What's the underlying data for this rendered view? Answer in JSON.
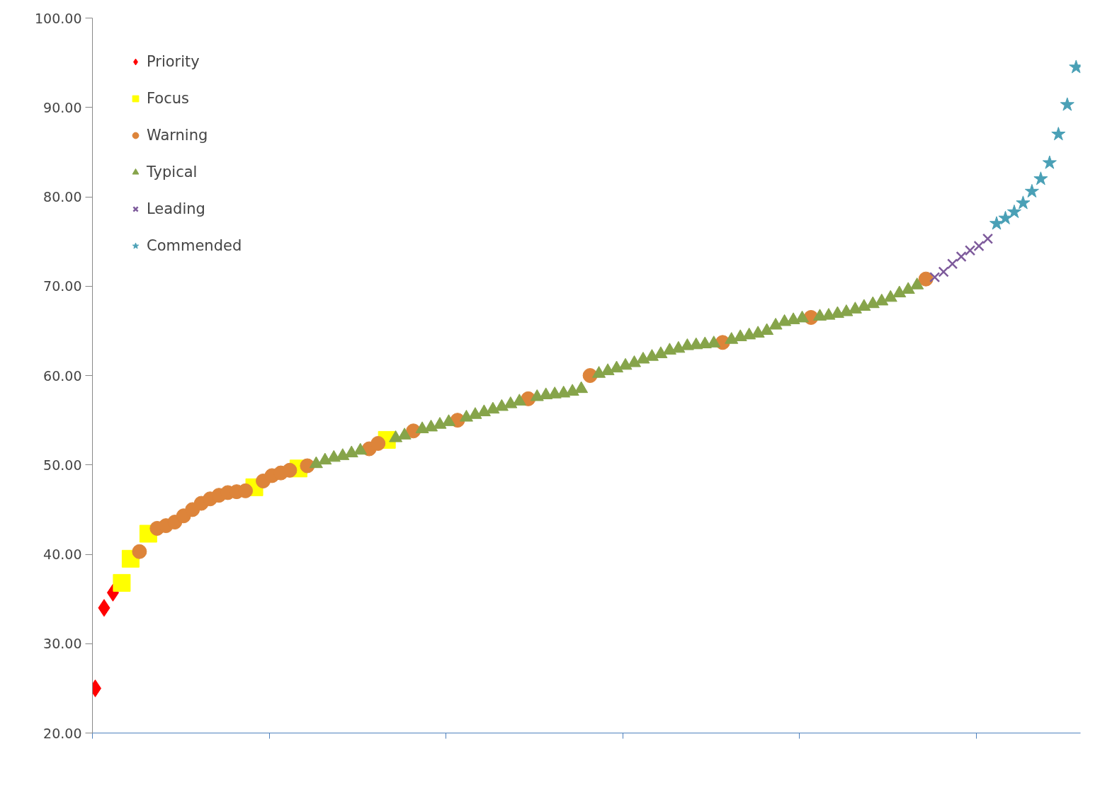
{
  "chart_data": {
    "type": "scatter",
    "categories": [
      null,
      null,
      null,
      null,
      null,
      null,
      null,
      null,
      null,
      null,
      null,
      null,
      null,
      null,
      null,
      null,
      null,
      null,
      null,
      null,
      null,
      null,
      null,
      null,
      null,
      null,
      null,
      null,
      null,
      null,
      null,
      null,
      null,
      null,
      null,
      null,
      null,
      null,
      null,
      null,
      null,
      null,
      null,
      null,
      null,
      null,
      null,
      null,
      null,
      null,
      null,
      null,
      null,
      null,
      null,
      null,
      null,
      null,
      null,
      null,
      null,
      null,
      null,
      null,
      null,
      null,
      null,
      null,
      null,
      null,
      null,
      null,
      null,
      null,
      null,
      null,
      null,
      null,
      null,
      null,
      null,
      null,
      null,
      null,
      null,
      null,
      null,
      null,
      null,
      null,
      null,
      null,
      null,
      null,
      null,
      null,
      null,
      null,
      null,
      null,
      null,
      null,
      null,
      null,
      null,
      null,
      null,
      null,
      null,
      null,
      null,
      null
    ],
    "series": [
      {
        "name": "Priority",
        "color": "#ff0000",
        "marker": "diamond",
        "values": [
          25,
          34,
          35.7,
          null,
          null,
          null,
          null,
          null,
          null,
          null,
          null,
          null,
          null,
          null,
          null,
          null,
          null,
          null,
          null,
          null,
          null,
          null,
          null,
          null,
          null,
          null,
          null,
          null,
          null,
          null,
          null,
          null,
          null,
          null,
          null,
          null,
          null,
          null,
          null,
          null,
          null,
          null,
          null,
          null,
          null,
          null,
          null,
          null,
          null,
          null,
          null,
          null,
          null,
          null,
          null,
          null,
          null,
          null,
          null,
          null,
          null,
          null,
          null,
          null,
          null,
          null,
          null,
          null,
          null,
          null,
          null,
          null,
          null,
          null,
          null,
          null,
          null,
          null,
          null,
          null,
          null,
          null,
          null,
          null,
          null,
          null,
          null,
          null,
          null,
          null,
          null,
          null,
          null,
          null,
          null,
          null,
          null,
          null,
          null,
          null,
          null,
          null,
          null,
          null,
          null,
          null,
          null,
          null,
          null,
          null,
          null,
          null
        ]
      },
      {
        "name": "Focus",
        "color": "#ffff00",
        "marker": "square",
        "values": [
          null,
          null,
          null,
          36.8,
          39.5,
          null,
          42.3,
          null,
          null,
          null,
          null,
          null,
          null,
          null,
          null,
          null,
          null,
          null,
          47.5,
          null,
          null,
          null,
          null,
          49.6,
          null,
          null,
          null,
          null,
          null,
          null,
          null,
          null,
          null,
          52.8,
          null,
          null,
          null,
          null,
          null,
          null,
          null,
          null,
          null,
          null,
          null,
          null,
          null,
          null,
          null,
          null,
          null,
          null,
          null,
          null,
          null,
          null,
          null,
          null,
          null,
          null,
          null,
          null,
          null,
          null,
          null,
          null,
          null,
          null,
          null,
          null,
          null,
          null,
          null,
          null,
          null,
          null,
          null,
          null,
          null,
          null,
          null,
          null,
          null,
          null,
          null,
          null,
          null,
          null,
          null,
          null,
          null,
          null,
          null,
          null,
          null,
          null,
          null,
          null,
          null,
          null,
          null,
          null,
          null,
          null,
          null,
          null,
          null,
          null,
          null,
          null,
          null,
          null
        ]
      },
      {
        "name": "Warning",
        "color": "#dd843a",
        "marker": "circle",
        "values": [
          null,
          null,
          null,
          null,
          null,
          40.3,
          null,
          42.9,
          43.2,
          43.6,
          44.3,
          45,
          45.7,
          46.2,
          46.6,
          46.9,
          47,
          47.1,
          null,
          48.2,
          48.8,
          49.1,
          49.4,
          null,
          49.9,
          null,
          null,
          null,
          null,
          null,
          null,
          51.8,
          52.4,
          null,
          null,
          null,
          53.8,
          null,
          null,
          null,
          null,
          55,
          null,
          null,
          null,
          null,
          null,
          null,
          null,
          57.4,
          null,
          null,
          null,
          null,
          null,
          null,
          60,
          null,
          null,
          null,
          null,
          null,
          null,
          null,
          null,
          null,
          null,
          null,
          null,
          null,
          null,
          63.7,
          null,
          null,
          null,
          null,
          null,
          null,
          null,
          null,
          null,
          66.5,
          null,
          null,
          null,
          null,
          null,
          null,
          null,
          null,
          null,
          null,
          null,
          null,
          70.8,
          null,
          null,
          null,
          null,
          null,
          null,
          null,
          null,
          null,
          null,
          null,
          null,
          null,
          null,
          null,
          null,
          null
        ]
      },
      {
        "name": "Typical",
        "color": "#86a44a",
        "marker": "triangle",
        "values": [
          null,
          null,
          null,
          null,
          null,
          null,
          null,
          null,
          null,
          null,
          null,
          null,
          null,
          null,
          null,
          null,
          null,
          null,
          null,
          null,
          null,
          null,
          null,
          null,
          null,
          50.1,
          50.5,
          50.8,
          51,
          51.3,
          51.6,
          null,
          null,
          null,
          53,
          53.3,
          null,
          54,
          54.2,
          54.5,
          54.8,
          null,
          55.3,
          55.6,
          55.9,
          56.2,
          56.5,
          56.8,
          57.1,
          null,
          57.6,
          57.8,
          57.9,
          58,
          58.2,
          58.5,
          null,
          60.2,
          60.5,
          60.8,
          61.1,
          61.4,
          61.8,
          62.1,
          62.4,
          62.8,
          63,
          63.3,
          63.4,
          63.5,
          63.6,
          null,
          64,
          64.3,
          64.5,
          64.7,
          65,
          65.6,
          66,
          66.2,
          66.4,
          null,
          66.6,
          66.7,
          66.9,
          67.1,
          67.4,
          67.7,
          68,
          68.3,
          68.7,
          69.2,
          69.6,
          70.1,
          null,
          null,
          null,
          null,
          null,
          null,
          null,
          null,
          null,
          null,
          null,
          null,
          null,
          null,
          null,
          null,
          null,
          null
        ]
      },
      {
        "name": "Leading",
        "color": "#7d5a9b",
        "marker": "cross",
        "values": [
          null,
          null,
          null,
          null,
          null,
          null,
          null,
          null,
          null,
          null,
          null,
          null,
          null,
          null,
          null,
          null,
          null,
          null,
          null,
          null,
          null,
          null,
          null,
          null,
          null,
          null,
          null,
          null,
          null,
          null,
          null,
          null,
          null,
          null,
          null,
          null,
          null,
          null,
          null,
          null,
          null,
          null,
          null,
          null,
          null,
          null,
          null,
          null,
          null,
          null,
          null,
          null,
          null,
          null,
          null,
          null,
          null,
          null,
          null,
          null,
          null,
          null,
          null,
          null,
          null,
          null,
          null,
          null,
          null,
          null,
          null,
          null,
          null,
          null,
          null,
          null,
          null,
          null,
          null,
          null,
          null,
          null,
          null,
          null,
          null,
          null,
          null,
          null,
          null,
          null,
          null,
          null,
          null,
          null,
          null,
          71,
          71.6,
          72.5,
          73.3,
          74,
          74.5,
          75.3,
          null,
          null,
          null,
          null,
          null,
          null,
          null,
          null,
          null,
          null
        ]
      },
      {
        "name": "Commended",
        "color": "#4aa0b6",
        "marker": "star",
        "values": [
          null,
          null,
          null,
          null,
          null,
          null,
          null,
          null,
          null,
          null,
          null,
          null,
          null,
          null,
          null,
          null,
          null,
          null,
          null,
          null,
          null,
          null,
          null,
          null,
          null,
          null,
          null,
          null,
          null,
          null,
          null,
          null,
          null,
          null,
          null,
          null,
          null,
          null,
          null,
          null,
          null,
          null,
          null,
          null,
          null,
          null,
          null,
          null,
          null,
          null,
          null,
          null,
          null,
          null,
          null,
          null,
          null,
          null,
          null,
          null,
          null,
          null,
          null,
          null,
          null,
          null,
          null,
          null,
          null,
          null,
          null,
          null,
          null,
          null,
          null,
          null,
          null,
          null,
          null,
          null,
          null,
          null,
          null,
          null,
          null,
          null,
          null,
          null,
          null,
          null,
          null,
          null,
          null,
          null,
          null,
          null,
          null,
          null,
          null,
          null,
          null,
          null,
          77,
          77.6,
          78.3,
          79.3,
          80.6,
          82,
          83.8,
          87,
          90.3,
          94.5
        ]
      }
    ],
    "ylim": [
      20,
      100
    ],
    "yticks": [
      {
        "value": 20,
        "label": "20.00"
      },
      {
        "value": 30,
        "label": "30.00"
      },
      {
        "value": 40,
        "label": "40.00"
      },
      {
        "value": 50,
        "label": "50.00"
      },
      {
        "value": 60,
        "label": "60.00"
      },
      {
        "value": 70,
        "label": "70.00"
      },
      {
        "value": 80,
        "label": "80.00"
      },
      {
        "value": 90,
        "label": "90.00"
      },
      {
        "value": 100,
        "label": "100.00"
      }
    ],
    "tick_labels": "y",
    "grid": false,
    "legend": "top left"
  }
}
